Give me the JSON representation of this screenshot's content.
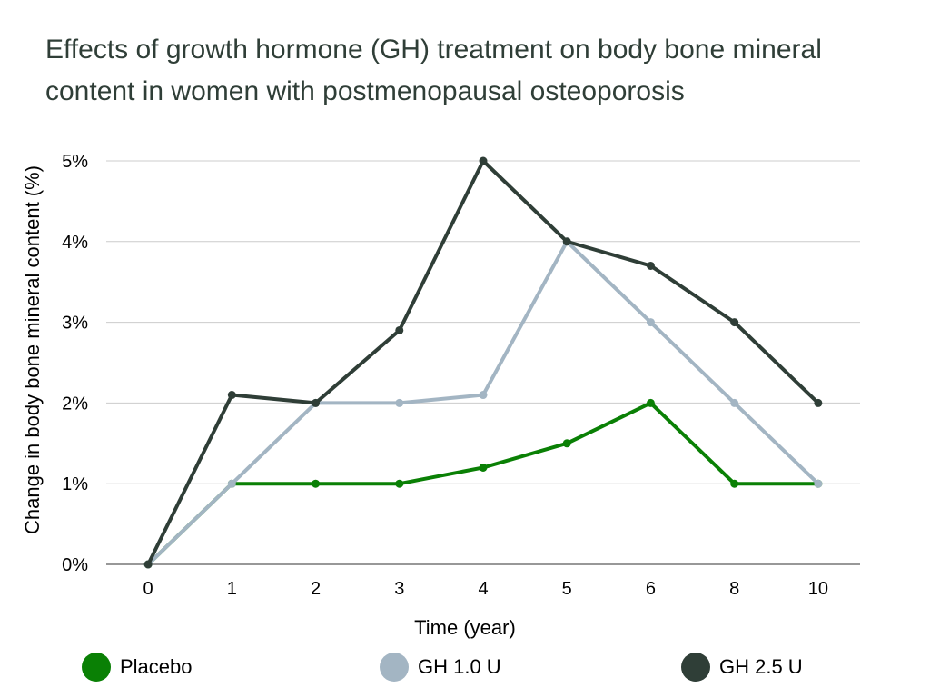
{
  "chart_data": {
    "type": "line",
    "title": "Effects of growth hormone (GH) treatment on body bone mineral content in women with postmenopausal osteoporosis",
    "xlabel": "Time (year)",
    "ylabel": "Change in body bone mineral content (%)",
    "categories": [
      "0",
      "1",
      "2",
      "3",
      "4",
      "5",
      "6",
      "8",
      "10"
    ],
    "y_ticks": [
      "0%",
      "1%",
      "2%",
      "3%",
      "4%",
      "5%"
    ],
    "ylim": [
      0,
      5
    ],
    "grid": true,
    "legend_position": "bottom",
    "series": [
      {
        "name": "Placebo",
        "color": "#0a8005",
        "values": [
          0,
          1,
          1,
          1,
          1.2,
          1.5,
          2,
          1,
          1
        ]
      },
      {
        "name": "GH 1.0 U",
        "color": "#a3b5c3",
        "values": [
          0,
          1,
          2,
          2,
          2.1,
          4,
          3,
          2,
          1
        ]
      },
      {
        "name": "GH 2.5 U",
        "color": "#2f3e37",
        "values": [
          0,
          2.1,
          2,
          2.9,
          5,
          4,
          3.7,
          3,
          2
        ]
      }
    ]
  }
}
